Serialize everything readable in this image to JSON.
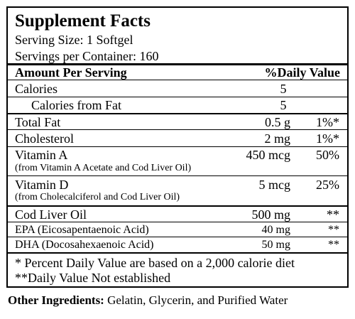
{
  "title": "Supplement Facts",
  "serving_size": "Serving Size: 1 Softgel",
  "servings_per_container": "Servings per Container: 160",
  "header": {
    "amount_per_serving": "Amount Per Serving",
    "daily_value": "%Daily Value"
  },
  "rows": {
    "calories": {
      "name": "Calories",
      "amount": "5",
      "dv": ""
    },
    "calories_from_fat": {
      "name": "Calories from Fat",
      "amount": "5",
      "dv": ""
    },
    "total_fat": {
      "name": "Total Fat",
      "amount": "0.5 g",
      "dv": "1%*"
    },
    "cholesterol": {
      "name": "Cholesterol",
      "amount": "2 mg",
      "dv": "1%*"
    },
    "vitamin_a": {
      "name": "Vitamin A",
      "source": "(from Vitamin A Acetate and Cod Liver Oil)",
      "amount": "450 mcg",
      "dv": "50%"
    },
    "vitamin_d": {
      "name": "Vitamin D",
      "source": "(from Cholecalciferol and Cod Liver Oil)",
      "amount": "5 mcg",
      "dv": "25%"
    },
    "cod_liver_oil": {
      "name": "Cod Liver Oil",
      "amount": "500 mg",
      "dv": "**"
    },
    "epa": {
      "name": "EPA (Eicosapentaenoic Acid)",
      "amount": "40 mg",
      "dv": "**"
    },
    "dha": {
      "name": "DHA (Docosahexaenoic Acid)",
      "amount": "50 mg",
      "dv": "**"
    }
  },
  "footnotes": {
    "percent_dv": "* Percent Daily Value are based on a 2,000 calorie diet",
    "not_established": "**Daily Value Not established"
  },
  "other_ingredients": {
    "label": "Other Ingredients:",
    "text": " Gelatin, Glycerin, and Purified Water"
  }
}
